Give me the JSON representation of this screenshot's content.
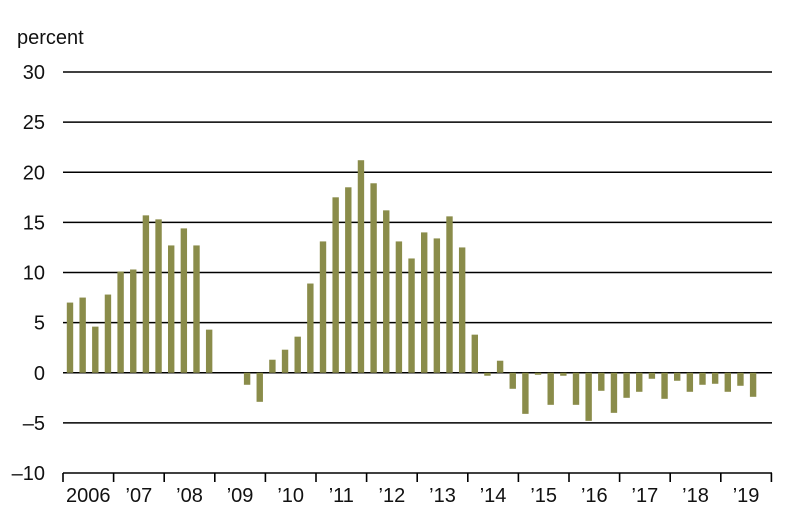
{
  "chart_data": {
    "type": "bar",
    "title": "",
    "xlabel": "",
    "ylabel": "percent",
    "ylim": [
      -10,
      30
    ],
    "yticks": [
      -10,
      -5,
      0,
      5,
      10,
      15,
      20,
      25,
      30
    ],
    "ytick_labels": [
      "–10",
      "–5",
      "0",
      "5",
      "10",
      "15",
      "20",
      "25",
      "30"
    ],
    "xtick_labels": [
      "2006",
      "’07",
      "’08",
      "’09",
      "’10",
      "’11",
      "’12",
      "’13",
      "’14",
      "’15",
      "’16",
      "’17",
      "’18",
      "’19"
    ],
    "frequency": "quarterly",
    "start": "2006 Q1",
    "grid": true,
    "legend": "none",
    "bar_color": "#8a8c4a",
    "categories": [
      "2006 Q1",
      "2006 Q2",
      "2006 Q3",
      "2006 Q4",
      "2007 Q1",
      "2007 Q2",
      "2007 Q3",
      "2007 Q4",
      "2008 Q1",
      "2008 Q2",
      "2008 Q3",
      "2008 Q4",
      "2009 Q1",
      "2009 Q2",
      "2009 Q3",
      "2009 Q4",
      "2010 Q1",
      "2010 Q2",
      "2010 Q3",
      "2010 Q4",
      "2011 Q1",
      "2011 Q2",
      "2011 Q3",
      "2011 Q4",
      "2012 Q1",
      "2012 Q2",
      "2012 Q3",
      "2012 Q4",
      "2013 Q1",
      "2013 Q2",
      "2013 Q3",
      "2013 Q4",
      "2014 Q1",
      "2014 Q2",
      "2014 Q3",
      "2014 Q4",
      "2015 Q1",
      "2015 Q2",
      "2015 Q3",
      "2015 Q4",
      "2016 Q1",
      "2016 Q2",
      "2016 Q3",
      "2016 Q4",
      "2017 Q1",
      "2017 Q2",
      "2017 Q3",
      "2017 Q4",
      "2018 Q1",
      "2018 Q2",
      "2018 Q3",
      "2018 Q4",
      "2019 Q1",
      "2019 Q2",
      "2019 Q3",
      "2019 Q4"
    ],
    "values": [
      7.0,
      7.5,
      4.6,
      7.8,
      10.1,
      10.3,
      15.7,
      15.3,
      12.7,
      14.4,
      12.7,
      4.3,
      null,
      null,
      -1.2,
      -2.9,
      1.3,
      2.3,
      3.6,
      8.9,
      13.1,
      17.5,
      18.5,
      21.2,
      18.9,
      16.2,
      13.1,
      11.4,
      14.0,
      13.4,
      15.6,
      12.5,
      3.8,
      -0.3,
      1.2,
      -1.6,
      -4.1,
      -0.2,
      -3.2,
      -0.3,
      -3.2,
      -4.8,
      -1.8,
      -4.0,
      -2.5,
      -1.9,
      -0.6,
      -2.6,
      -0.8,
      -1.9,
      -1.2,
      -1.1,
      -1.9,
      -1.3,
      -2.4,
      null
    ]
  }
}
